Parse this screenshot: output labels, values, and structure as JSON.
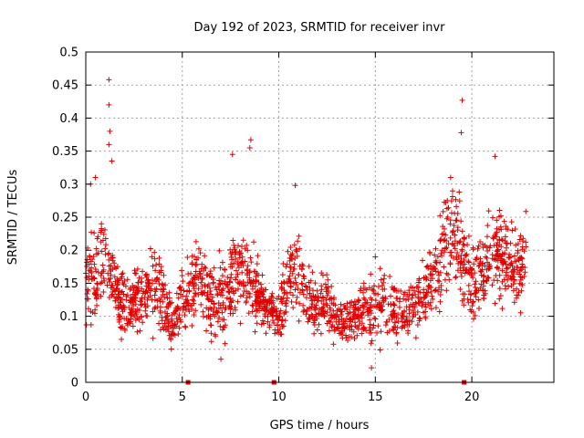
{
  "chart_data": {
    "type": "scatter",
    "title": "Day 192 of 2023, SRMTID for receiver invr",
    "xlabel": "GPS time / hours",
    "ylabel": "SRMTID / TECUs",
    "xlim": [
      0,
      24.25
    ],
    "ylim": [
      0,
      0.5
    ],
    "x_ticks": [
      0,
      5,
      10,
      15,
      20
    ],
    "y_ticks": [
      0,
      0.05,
      0.1,
      0.15,
      0.2,
      0.25,
      0.3,
      0.35,
      0.4,
      0.45,
      0.5
    ],
    "x_tick_labels": [
      "0",
      "5",
      "10",
      "15",
      "20"
    ],
    "y_tick_labels": [
      "0",
      "0.05",
      "0.1",
      "0.15",
      "0.2",
      "0.25",
      "0.3",
      "0.35",
      "0.4",
      "0.45",
      "0.5"
    ],
    "grid": true,
    "marker": "+",
    "color": "#e00000",
    "gap_markers_x": [
      5.3,
      9.75,
      19.6
    ],
    "envelope": {
      "x": [
        0,
        0.5,
        1.0,
        1.5,
        2.0,
        2.5,
        3.0,
        3.5,
        4.0,
        4.5,
        5.0,
        5.5,
        6.0,
        6.5,
        7.0,
        7.5,
        8.0,
        8.5,
        9.0,
        9.5,
        10.0,
        10.5,
        11.0,
        11.5,
        12.0,
        12.5,
        13.0,
        13.5,
        14.0,
        14.5,
        15.0,
        15.5,
        16.0,
        16.5,
        17.0,
        17.5,
        18.0,
        18.5,
        19.0,
        19.5,
        20.0,
        20.5,
        21.0,
        21.5,
        22.0,
        22.5,
        22.8
      ],
      "center": [
        0.15,
        0.16,
        0.19,
        0.15,
        0.11,
        0.12,
        0.13,
        0.14,
        0.13,
        0.09,
        0.12,
        0.15,
        0.16,
        0.13,
        0.12,
        0.15,
        0.17,
        0.15,
        0.13,
        0.11,
        0.1,
        0.16,
        0.17,
        0.13,
        0.11,
        0.12,
        0.1,
        0.09,
        0.1,
        0.11,
        0.11,
        0.12,
        0.11,
        0.1,
        0.12,
        0.14,
        0.16,
        0.19,
        0.22,
        0.19,
        0.15,
        0.16,
        0.19,
        0.2,
        0.18,
        0.17,
        0.19
      ],
      "spread": [
        0.05,
        0.06,
        0.07,
        0.05,
        0.04,
        0.04,
        0.04,
        0.05,
        0.05,
        0.03,
        0.04,
        0.05,
        0.05,
        0.05,
        0.05,
        0.05,
        0.06,
        0.05,
        0.04,
        0.03,
        0.03,
        0.06,
        0.06,
        0.04,
        0.04,
        0.04,
        0.03,
        0.03,
        0.03,
        0.04,
        0.04,
        0.04,
        0.04,
        0.03,
        0.04,
        0.04,
        0.05,
        0.06,
        0.06,
        0.06,
        0.05,
        0.05,
        0.06,
        0.06,
        0.05,
        0.05,
        0.05
      ]
    },
    "peaks": [
      {
        "x": 1.2,
        "y": 0.458
      },
      {
        "x": 1.2,
        "y": 0.42
      },
      {
        "x": 1.25,
        "y": 0.38
      },
      {
        "x": 1.2,
        "y": 0.36
      },
      {
        "x": 1.35,
        "y": 0.335
      },
      {
        "x": 0.25,
        "y": 0.3
      },
      {
        "x": 0.5,
        "y": 0.31
      },
      {
        "x": 8.55,
        "y": 0.367
      },
      {
        "x": 8.5,
        "y": 0.355
      },
      {
        "x": 7.6,
        "y": 0.345
      },
      {
        "x": 19.5,
        "y": 0.427
      },
      {
        "x": 19.45,
        "y": 0.378
      },
      {
        "x": 21.2,
        "y": 0.342
      },
      {
        "x": 18.9,
        "y": 0.31
      },
      {
        "x": 10.85,
        "y": 0.298
      },
      {
        "x": 14.8,
        "y": 0.022
      },
      {
        "x": 7.0,
        "y": 0.035
      },
      {
        "x": 15.0,
        "y": 0.19
      }
    ]
  }
}
